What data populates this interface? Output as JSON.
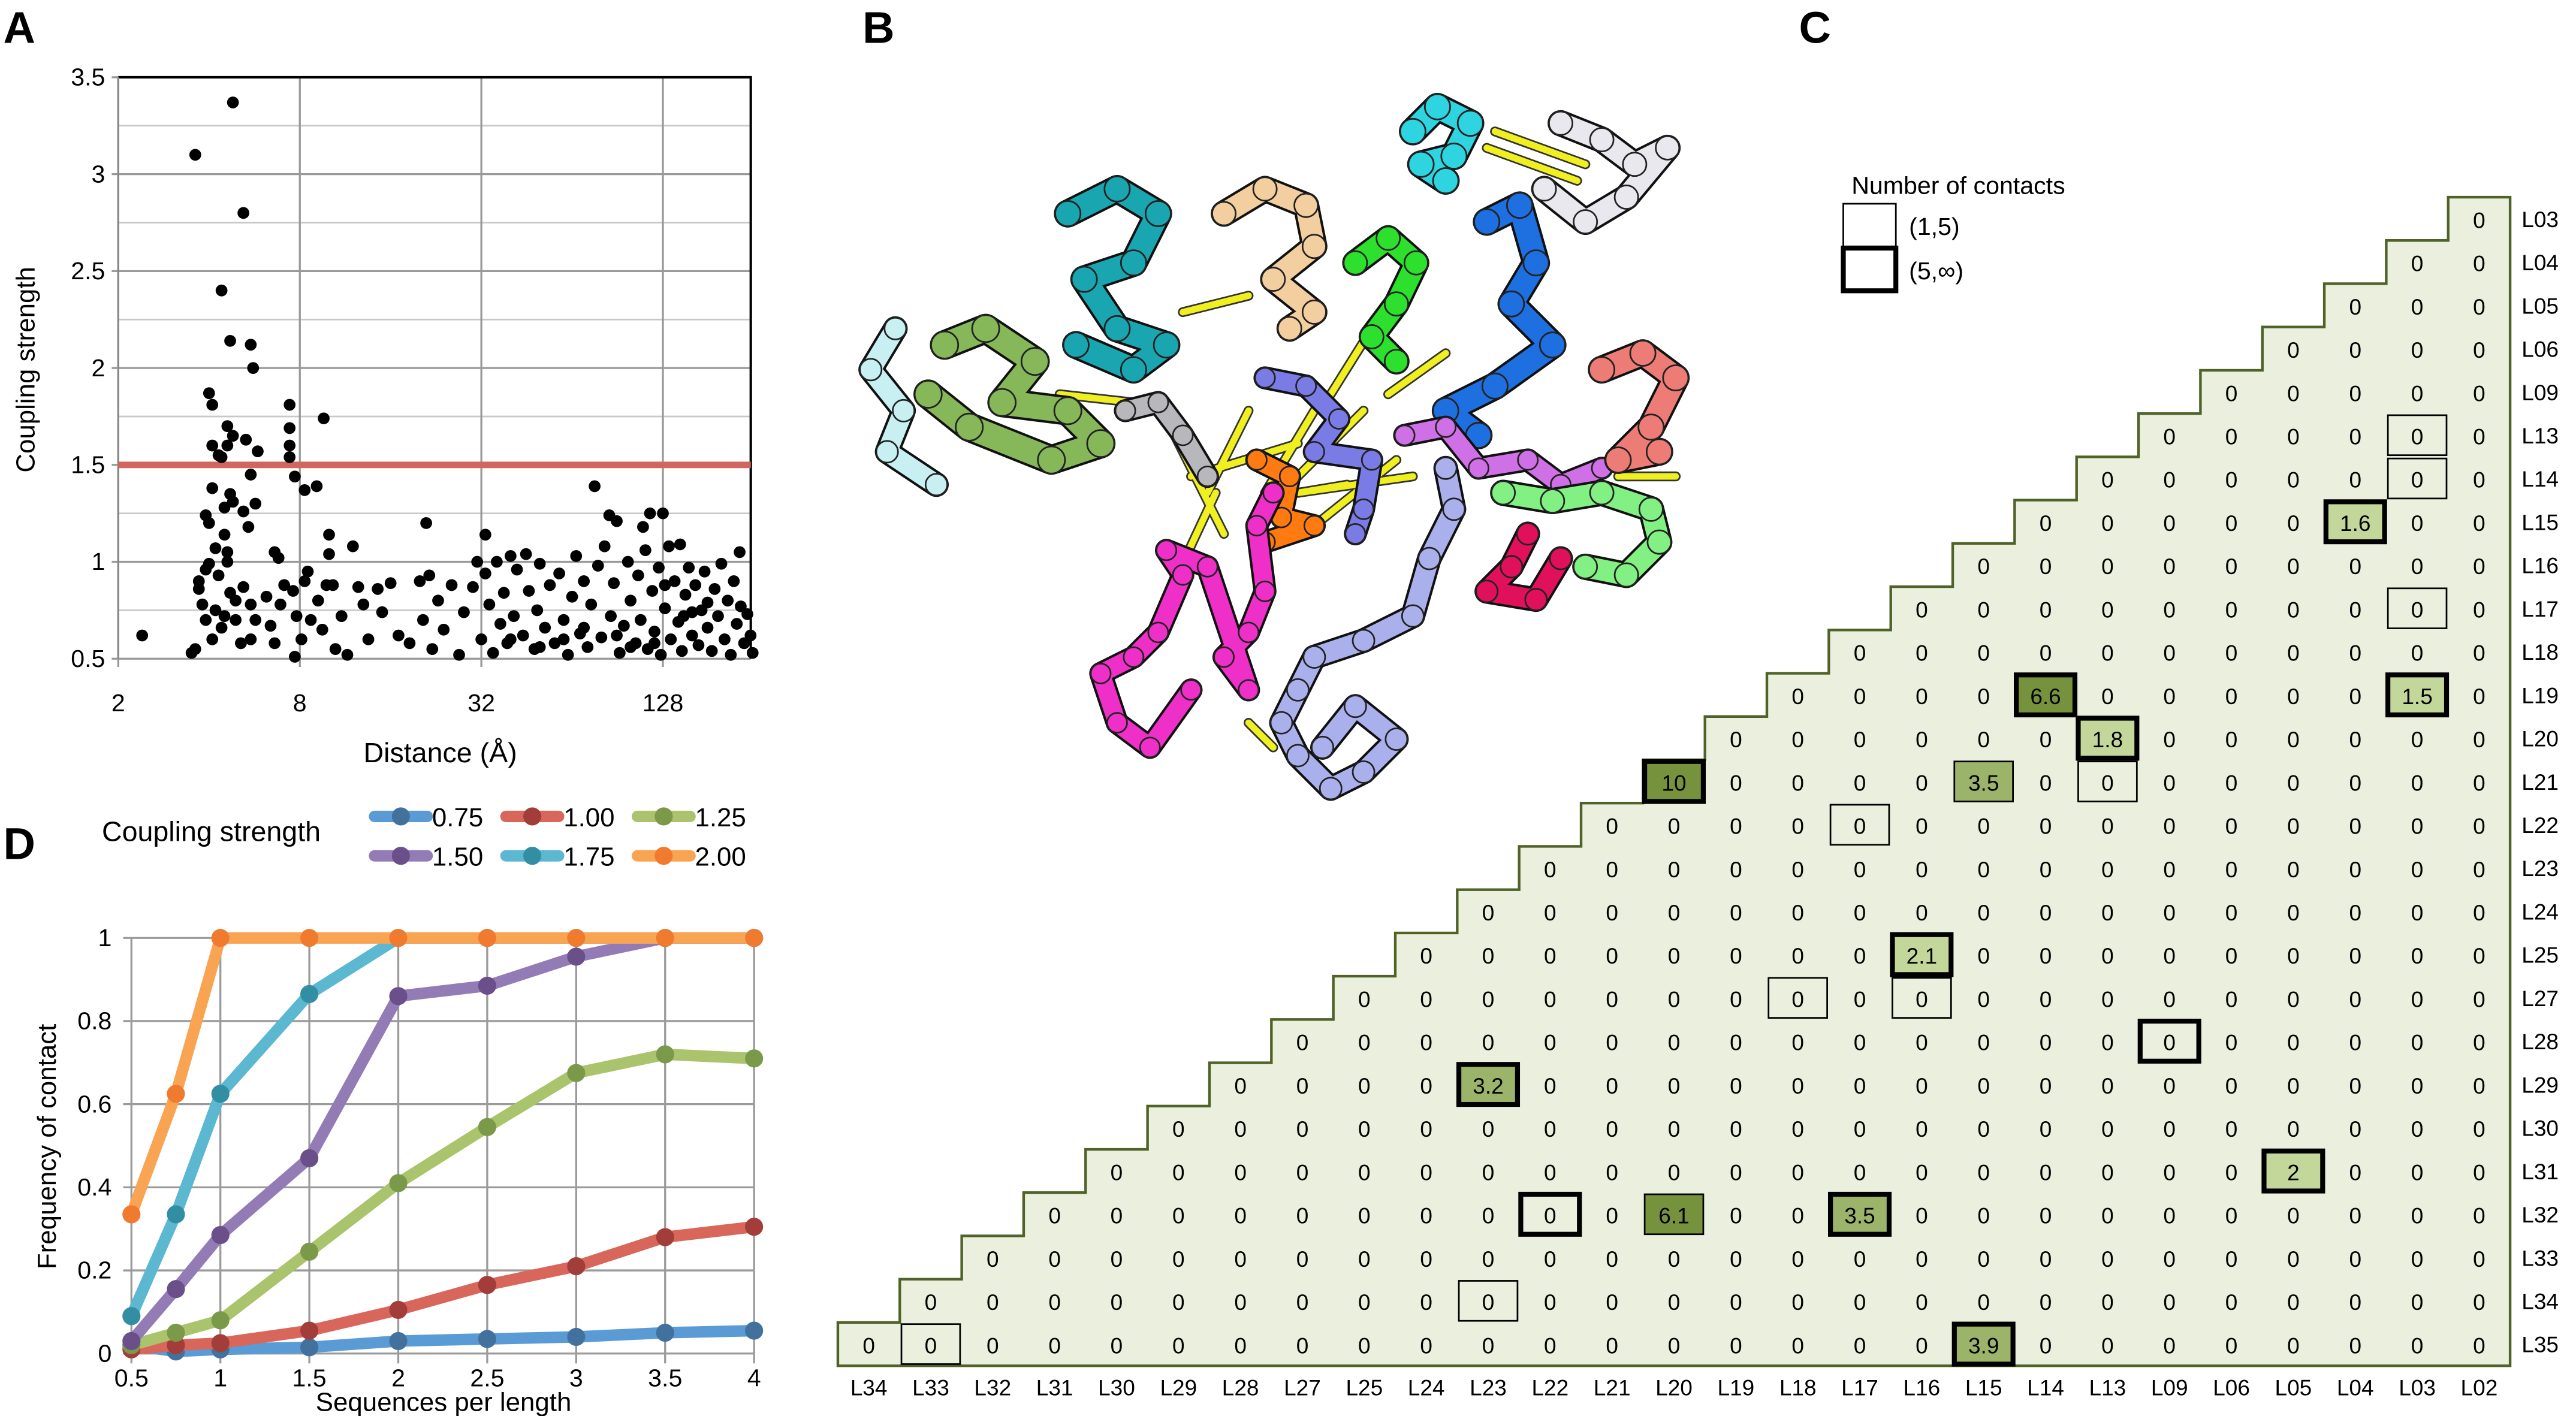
{
  "panel_labels": {
    "a": "A",
    "b": "B",
    "c": "C",
    "d": "D"
  },
  "chart_data": [
    {
      "type": "scatter",
      "panel": "A",
      "xlabel": "Distance (Å)",
      "ylabel": "Coupling strength",
      "x_scale": "log2",
      "xlim": [
        2,
        256
      ],
      "ylim": [
        0.5,
        3.5
      ],
      "xticks": [
        "2",
        "8",
        "32",
        "128"
      ],
      "yticks": [
        "0.5",
        "1",
        "1.5",
        "2",
        "2.5",
        "3",
        "3.5"
      ],
      "grid": true,
      "threshold_line": {
        "y": 1.5,
        "color": "#d0665e"
      },
      "point_color": "#000000",
      "points": [
        [
          2.4,
          0.62
        ],
        [
          3.6,
          3.1
        ],
        [
          4.8,
          3.37
        ],
        [
          5.2,
          2.8
        ],
        [
          4.4,
          2.4
        ],
        [
          4.7,
          2.14
        ],
        [
          5.5,
          2.12
        ],
        [
          5.6,
          2.0
        ],
        [
          4.0,
          1.87
        ],
        [
          4.1,
          1.81
        ],
        [
          4.1,
          1.6
        ],
        [
          4.6,
          1.7
        ],
        [
          4.8,
          1.65
        ],
        [
          4.6,
          1.6
        ],
        [
          5.3,
          1.63
        ],
        [
          5.8,
          1.57
        ],
        [
          7.4,
          1.81
        ],
        [
          7.4,
          1.69
        ],
        [
          7.4,
          1.6
        ],
        [
          7.4,
          1.54
        ],
        [
          9.6,
          1.74
        ],
        [
          4.3,
          1.55
        ],
        [
          4.4,
          1.54
        ],
        [
          5.5,
          1.45
        ],
        [
          7.7,
          1.44
        ],
        [
          8.3,
          1.37
        ],
        [
          9.1,
          1.39
        ],
        [
          4.1,
          1.38
        ],
        [
          4.7,
          1.35
        ],
        [
          4.8,
          1.31
        ],
        [
          4.5,
          1.28
        ],
        [
          5.2,
          1.26
        ],
        [
          5.7,
          1.3
        ],
        [
          5.4,
          1.18
        ],
        [
          3.9,
          1.24
        ],
        [
          4.0,
          1.2
        ],
        [
          4.5,
          1.14
        ],
        [
          10,
          1.14
        ],
        [
          10,
          1.04
        ],
        [
          6.6,
          1.05
        ],
        [
          6.8,
          1.02
        ],
        [
          12,
          1.08
        ],
        [
          21,
          1.2
        ],
        [
          33,
          1.14
        ],
        [
          76,
          1.39
        ],
        [
          85,
          1.24
        ],
        [
          90,
          1.21
        ],
        [
          110,
          1.18
        ],
        [
          128,
          1.25
        ],
        [
          116,
          1.25
        ],
        [
          146,
          1.09
        ],
        [
          230,
          1.05
        ],
        [
          3.7,
          0.9
        ],
        [
          3.7,
          0.86
        ],
        [
          3.9,
          0.96
        ],
        [
          4.0,
          0.99
        ],
        [
          4.2,
          1.07
        ],
        [
          4.3,
          0.93
        ],
        [
          4.6,
          1.0
        ],
        [
          4.6,
          1.05
        ],
        [
          3.8,
          0.78
        ],
        [
          3.9,
          0.7
        ],
        [
          4.2,
          0.75
        ],
        [
          4.4,
          0.66
        ],
        [
          4.1,
          0.6
        ],
        [
          3.6,
          0.55
        ],
        [
          3.5,
          0.53
        ],
        [
          4.5,
          0.72
        ],
        [
          4.7,
          0.84
        ],
        [
          4.9,
          0.8
        ],
        [
          5.2,
          0.87
        ],
        [
          5.5,
          0.78
        ],
        [
          5.7,
          0.7
        ],
        [
          5.5,
          0.6
        ],
        [
          5.1,
          0.58
        ],
        [
          4.9,
          0.7
        ],
        [
          6.2,
          0.82
        ],
        [
          6.4,
          0.67
        ],
        [
          6.6,
          0.58
        ],
        [
          6.9,
          0.78
        ],
        [
          7.1,
          0.88
        ],
        [
          7.6,
          0.85
        ],
        [
          7.8,
          0.72
        ],
        [
          7.7,
          0.51
        ],
        [
          8.1,
          0.6
        ],
        [
          8.3,
          0.9
        ],
        [
          8.5,
          0.95
        ],
        [
          8.7,
          0.7
        ],
        [
          9.2,
          0.8
        ],
        [
          9.5,
          0.65
        ],
        [
          9.8,
          0.88
        ],
        [
          10.3,
          0.88
        ],
        [
          10.5,
          0.55
        ],
        [
          11,
          0.72
        ],
        [
          11.5,
          0.52
        ],
        [
          12.5,
          0.87
        ],
        [
          13,
          0.78
        ],
        [
          13.5,
          0.6
        ],
        [
          14.5,
          0.86
        ],
        [
          15,
          0.74
        ],
        [
          16,
          0.89
        ],
        [
          17,
          0.62
        ],
        [
          18.5,
          0.58
        ],
        [
          20,
          0.9
        ],
        [
          20.5,
          0.7
        ],
        [
          21.5,
          0.93
        ],
        [
          22,
          0.55
        ],
        [
          23,
          0.8
        ],
        [
          24,
          0.65
        ],
        [
          25.5,
          0.88
        ],
        [
          27,
          0.52
        ],
        [
          28,
          0.74
        ],
        [
          30,
          0.87
        ],
        [
          31,
          1.0
        ],
        [
          32,
          0.6
        ],
        [
          33,
          0.94
        ],
        [
          34,
          0.78
        ],
        [
          35,
          0.53
        ],
        [
          36,
          1.0
        ],
        [
          37,
          0.68
        ],
        [
          38,
          0.84
        ],
        [
          39,
          0.58
        ],
        [
          40,
          1.03
        ],
        [
          41,
          0.72
        ],
        [
          42,
          0.96
        ],
        [
          44,
          0.62
        ],
        [
          45,
          1.04
        ],
        [
          46,
          0.85
        ],
        [
          48,
          0.55
        ],
        [
          49,
          0.75
        ],
        [
          50,
          0.99
        ],
        [
          52,
          0.66
        ],
        [
          54,
          0.88
        ],
        [
          56,
          0.58
        ],
        [
          58,
          0.94
        ],
        [
          60,
          0.7
        ],
        [
          62,
          0.52
        ],
        [
          64,
          0.82
        ],
        [
          66,
          1.03
        ],
        [
          68,
          0.63
        ],
        [
          70,
          0.9
        ],
        [
          72,
          0.56
        ],
        [
          74,
          0.78
        ],
        [
          78,
          0.98
        ],
        [
          80,
          0.61
        ],
        [
          82,
          1.08
        ],
        [
          86,
          0.72
        ],
        [
          88,
          0.89
        ],
        [
          92,
          0.53
        ],
        [
          95,
          0.67
        ],
        [
          98,
          1.0
        ],
        [
          100,
          0.8
        ],
        [
          104,
          0.58
        ],
        [
          106,
          0.93
        ],
        [
          108,
          0.7
        ],
        [
          112,
          1.06
        ],
        [
          114,
          0.55
        ],
        [
          118,
          0.85
        ],
        [
          120,
          0.64
        ],
        [
          124,
          0.97
        ],
        [
          126,
          0.52
        ],
        [
          130,
          0.76
        ],
        [
          134,
          1.08
        ],
        [
          136,
          0.6
        ],
        [
          140,
          0.9
        ],
        [
          144,
          0.69
        ],
        [
          148,
          0.54
        ],
        [
          152,
          0.83
        ],
        [
          156,
          0.97
        ],
        [
          160,
          0.62
        ],
        [
          164,
          0.88
        ],
        [
          168,
          0.57
        ],
        [
          172,
          0.75
        ],
        [
          176,
          0.95
        ],
        [
          180,
          0.66
        ],
        [
          186,
          0.54
        ],
        [
          190,
          0.86
        ],
        [
          195,
          0.72
        ],
        [
          200,
          0.99
        ],
        [
          205,
          0.6
        ],
        [
          210,
          0.8
        ],
        [
          215,
          0.52
        ],
        [
          220,
          0.9
        ],
        [
          225,
          0.68
        ],
        [
          232,
          0.77
        ],
        [
          238,
          0.58
        ],
        [
          244,
          0.73
        ],
        [
          250,
          0.62
        ],
        [
          254,
          0.53
        ],
        [
          60,
          0.6
        ],
        [
          90,
          0.62
        ],
        [
          120,
          0.58
        ],
        [
          150,
          0.72
        ],
        [
          180,
          0.79
        ],
        [
          70,
          0.66
        ],
        [
          100,
          0.56
        ],
        [
          130,
          0.88
        ],
        [
          160,
          0.74
        ],
        [
          40,
          0.6
        ],
        [
          50,
          0.56
        ]
      ]
    },
    {
      "type": "line",
      "panel": "D",
      "legend_title": "Coupling strength",
      "legend_position": "top",
      "xlabel": "Sequences per length",
      "ylabel": "Frequency of contact",
      "x": [
        0.5,
        0.75,
        1,
        1.5,
        2,
        2.5,
        3,
        3.5,
        4
      ],
      "xticks": [
        "0.5",
        "1",
        "1.5",
        "2",
        "2.5",
        "3",
        "3.5",
        "4"
      ],
      "yticks": [
        "0",
        "0.2",
        "0.4",
        "0.6",
        "0.8",
        "1"
      ],
      "xlim": [
        0.5,
        4
      ],
      "ylim": [
        0,
        1
      ],
      "grid": true,
      "series": [
        {
          "name": "0.75",
          "line_color": "#5b9bd5",
          "marker_color": "#41719c",
          "values": [
            0.02,
            0.005,
            0.01,
            0.015,
            0.03,
            0.035,
            0.04,
            0.05,
            0.055
          ]
        },
        {
          "name": "1.00",
          "line_color": "#d9665b",
          "marker_color": "#a33d3a",
          "values": [
            0.01,
            0.02,
            0.025,
            0.055,
            0.105,
            0.165,
            0.21,
            0.28,
            0.305
          ]
        },
        {
          "name": "1.25",
          "line_color": "#a9c46c",
          "marker_color": "#7a9a4a",
          "values": [
            0.02,
            0.05,
            0.08,
            0.245,
            0.41,
            0.545,
            0.675,
            0.72,
            0.71
          ]
        },
        {
          "name": "1.50",
          "line_color": "#937cb5",
          "marker_color": "#6a4f8a",
          "values": [
            0.03,
            0.155,
            0.285,
            0.47,
            0.86,
            0.885,
            0.955,
            1.0,
            1.0
          ]
        },
        {
          "name": "1.75",
          "line_color": "#5bb8d0",
          "marker_color": "#318ea3",
          "values": [
            0.09,
            0.335,
            0.625,
            0.865,
            1.0,
            1.0,
            1.0,
            1.0,
            1.0
          ]
        },
        {
          "name": "2.00",
          "line_color": "#f8a452",
          "marker_color": "#f07a2e",
          "values": [
            0.335,
            0.625,
            1.0,
            1.0,
            1.0,
            1.0,
            1.0,
            1.0,
            1.0
          ]
        }
      ]
    }
  ],
  "structure_panel": {
    "chain_colors": [
      "#2ed4e0",
      "#e8e8ee",
      "#1aa6b0",
      "#f3cfa0",
      "#2de02d",
      "#1e6fe0",
      "#c8f0f2",
      "#86b85a",
      "#b8b8bc",
      "#7b7be6",
      "#ff7a10",
      "#d070e6",
      "#ee7c76",
      "#82f082",
      "#e0105a",
      "#ee30c8",
      "#aab0ec"
    ],
    "link_color": "#f0f020"
  },
  "contact_matrix": {
    "legend_title": "Number of contacts",
    "legend_items": [
      {
        "label": "(1,5)",
        "style": "thin"
      },
      {
        "label": "(5,∞)",
        "style": "thick"
      }
    ],
    "row_labels": [
      "L03",
      "L04",
      "L05",
      "L06",
      "L09",
      "L13",
      "L14",
      "L15",
      "L16",
      "L17",
      "L18",
      "L19",
      "L20",
      "L21",
      "L22",
      "L23",
      "L24",
      "L25",
      "L27",
      "L28",
      "L29",
      "L30",
      "L31",
      "L32",
      "L33",
      "L34",
      "L35"
    ],
    "col_labels": [
      "L34",
      "L33",
      "L32",
      "L31",
      "L30",
      "L29",
      "L28",
      "L27",
      "L25",
      "L24",
      "L23",
      "L22",
      "L21",
      "L20",
      "L19",
      "L18",
      "L17",
      "L16",
      "L15",
      "L14",
      "L13",
      "L09",
      "L06",
      "L05",
      "L04",
      "L03",
      "L02"
    ],
    "rows": [
      "0",
      "0 0",
      "0 0 0",
      "0 0 0 0",
      "0 0 0 0 0",
      "0 0 0 0 0 0",
      "0 0 0 0 0 0 0",
      "0 0 0 0 0 1.6 0 0",
      "0 0 0 0 0 0 0 0 0",
      "0 0 0 0 0 0 0 0 0 0",
      "0 0 0 0 0 0 0 0 0 0 0",
      "0 0 0 0 6.6 0 0 0 0 0 1.5 0",
      "0 0 0 0 0 0 1.8 0 0 0 0 0 0",
      "10 0 0 0 0 3.5 0 0 0 0 0 0 0 0",
      "0 0 0 0 0 0 0 0 0 0 0 0 0 0 0",
      "0 0 0 0 0 0 0 0 0 0 0 0 0 0 0 0",
      "0 0 0 0 0 0 0 0 0 0 0 0 0 0 0 0 0",
      "0 0 0 0 0 0 0 0 2.1 0 0 0 0 0 0 0 0 0",
      "0 0 0 0 0 0 0 0 0 0 0 0 0 0 0 0 0 0 0",
      "0 0 0 0 0 0 0 0 0 0 0 0 0 0 0 0 0 0 0 0",
      "0 0 0 0 3.2 0 0 0 0 0 0 0 0 0 0 0 0 0 0 0 0",
      "0 0 0 0 0 0 0 0 0 0 0 0 0 0 0 0 0 0 0 0 0 0",
      "0 0 0 0 0 0 0 0 0 0 0 0 0 0 0 0 0 0 0 2 0 0 0",
      "0 0 0 0 0 0 0 0 0 0 6.1 0 0 3.5 0 0 0 0 0 0 0 0 0 0",
      "0 0 0 0 0 0 0 0 0 0 0 0 0 0 0 0 0 0 0 0 0 0 0 0 0",
      "0 0 0 0 0 0 0 0 0 0 0 0 0 0 0 0 0 0 0 0 0 0 0 0 0 0",
      "0 0 0 0 0 0 0 0 0 0 0 0 0 0 0 0 0 0 3.9 0 0 0 0 0 0 0 0"
    ],
    "boxes": [
      [
        "L13",
        "L03",
        "(1,5)"
      ],
      [
        "L14",
        "L03",
        "(1,5)"
      ],
      [
        "L17",
        "L03",
        "(1,5)"
      ],
      [
        "L21",
        "L15",
        "(1,5)"
      ],
      [
        "L21",
        "L13",
        "(1,5)"
      ],
      [
        "L22",
        "L17",
        "(1,5)"
      ],
      [
        "L27",
        "L18",
        "(1,5)"
      ],
      [
        "L27",
        "L16",
        "(1,5)"
      ],
      [
        "L34",
        "L23",
        "(1,5)"
      ],
      [
        "L35",
        "L33",
        "(1,5)"
      ],
      [
        "L32",
        "L20",
        "(1,5)"
      ],
      [
        "L15",
        "L04",
        "(5,∞)"
      ],
      [
        "L19",
        "L14",
        "(5,∞)"
      ],
      [
        "L19",
        "L03",
        "(5,∞)"
      ],
      [
        "L20",
        "L13",
        "(5,∞)"
      ],
      [
        "L21",
        "L20",
        "(5,∞)"
      ],
      [
        "L25",
        "L16",
        "(5,∞)"
      ],
      [
        "L28",
        "L09",
        "(5,∞)"
      ],
      [
        "L29",
        "L23",
        "(5,∞)"
      ],
      [
        "L31",
        "L05",
        "(5,∞)"
      ],
      [
        "L32",
        "L22",
        "(5,∞)"
      ],
      [
        "L32",
        "L17",
        "(5,∞)"
      ],
      [
        "L35",
        "L15",
        "(5,∞)"
      ]
    ],
    "colors": {
      "background": "#ebf0de",
      "border": "#4f6228",
      "low": "#c4d79b",
      "mid": "#9bb46a",
      "high": "#76923c"
    }
  }
}
